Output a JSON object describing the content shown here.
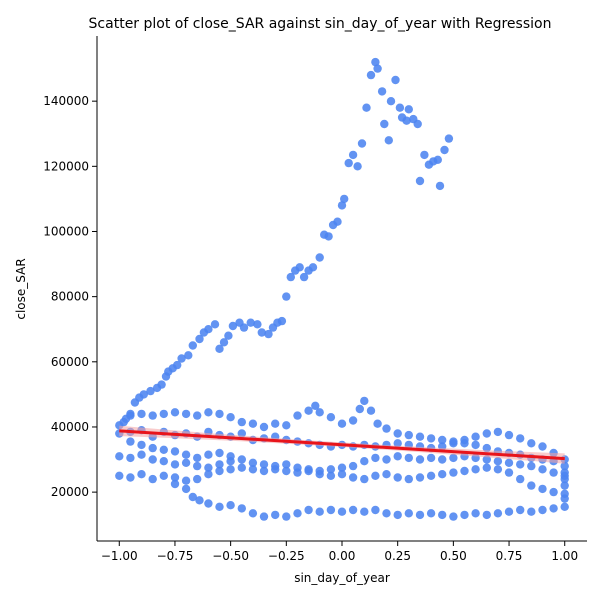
{
  "chart_data": {
    "type": "scatter",
    "title": "Scatter plot of close_SAR against sin_day_of_year with Regression",
    "xlabel": "sin_day_of_year",
    "ylabel": "close_SAR",
    "xlim": [
      -1.1,
      1.1
    ],
    "ylim": [
      5000,
      160000
    ],
    "x_ticks": [
      -1.0,
      -0.75,
      -0.5,
      -0.25,
      0.0,
      0.25,
      0.5,
      0.75,
      1.0
    ],
    "x_tick_labels": [
      "−1.00",
      "−0.75",
      "−0.50",
      "−0.25",
      "0.00",
      "0.25",
      "0.50",
      "0.75",
      "1.00"
    ],
    "y_ticks": [
      20000,
      40000,
      60000,
      80000,
      100000,
      120000,
      140000
    ],
    "y_tick_labels": [
      "20000",
      "40000",
      "60000",
      "80000",
      "100000",
      "120000",
      "140000"
    ],
    "grid": false,
    "point_color": "#4c84f0",
    "regression_color": "#e8141b",
    "regression_band_color": "#f4a3a3",
    "regression": {
      "x": [
        -1.0,
        1.0
      ],
      "y": [
        38800,
        30300
      ]
    },
    "points": [
      [
        -1.0,
        40500
      ],
      [
        -0.98,
        41500
      ],
      [
        -0.97,
        42500
      ],
      [
        -0.95,
        44000
      ],
      [
        -0.93,
        47500
      ],
      [
        -0.91,
        49000
      ],
      [
        -0.89,
        50000
      ],
      [
        -0.86,
        51000
      ],
      [
        -0.83,
        52000
      ],
      [
        -0.81,
        53000
      ],
      [
        -0.79,
        55500
      ],
      [
        -0.78,
        57000
      ],
      [
        -0.76,
        58000
      ],
      [
        -0.74,
        59000
      ],
      [
        -0.72,
        61000
      ],
      [
        -0.69,
        62000
      ],
      [
        -0.67,
        65000
      ],
      [
        -0.64,
        67000
      ],
      [
        -0.62,
        69000
      ],
      [
        -0.6,
        70000
      ],
      [
        -0.57,
        71500
      ],
      [
        -0.55,
        64000
      ],
      [
        -0.53,
        66000
      ],
      [
        -0.51,
        68000
      ],
      [
        -0.49,
        71000
      ],
      [
        -0.46,
        72000
      ],
      [
        -0.44,
        70500
      ],
      [
        -0.41,
        72000
      ],
      [
        -0.38,
        71500
      ],
      [
        -0.36,
        69000
      ],
      [
        -0.33,
        68500
      ],
      [
        -0.31,
        70500
      ],
      [
        -0.29,
        72000
      ],
      [
        -0.27,
        72500
      ],
      [
        -0.25,
        80000
      ],
      [
        -0.23,
        86000
      ],
      [
        -0.21,
        88000
      ],
      [
        -0.19,
        89000
      ],
      [
        -0.17,
        86000
      ],
      [
        -0.15,
        88000
      ],
      [
        -0.13,
        89000
      ],
      [
        -0.1,
        92000
      ],
      [
        -0.08,
        99000
      ],
      [
        -0.06,
        98500
      ],
      [
        -0.04,
        102000
      ],
      [
        -0.02,
        103000
      ],
      [
        0.0,
        108000
      ],
      [
        0.01,
        110000
      ],
      [
        0.03,
        121000
      ],
      [
        0.05,
        123500
      ],
      [
        0.07,
        120000
      ],
      [
        0.09,
        127000
      ],
      [
        0.11,
        138000
      ],
      [
        0.13,
        148000
      ],
      [
        0.15,
        152000
      ],
      [
        0.16,
        150000
      ],
      [
        0.18,
        143000
      ],
      [
        0.19,
        133000
      ],
      [
        0.21,
        128000
      ],
      [
        0.22,
        140000
      ],
      [
        0.24,
        146500
      ],
      [
        0.26,
        138000
      ],
      [
        0.27,
        135000
      ],
      [
        0.29,
        134000
      ],
      [
        0.3,
        137500
      ],
      [
        0.32,
        134500
      ],
      [
        0.34,
        133000
      ],
      [
        0.35,
        115500
      ],
      [
        0.37,
        123500
      ],
      [
        0.39,
        120500
      ],
      [
        0.41,
        121500
      ],
      [
        0.43,
        122000
      ],
      [
        0.44,
        114000
      ],
      [
        0.46,
        125000
      ],
      [
        0.48,
        128500
      ],
      [
        -1.0,
        38000
      ],
      [
        -0.95,
        38500
      ],
      [
        -0.9,
        39000
      ],
      [
        -0.85,
        37000
      ],
      [
        -0.8,
        38500
      ],
      [
        -0.75,
        37500
      ],
      [
        -0.7,
        38000
      ],
      [
        -0.65,
        37000
      ],
      [
        -0.6,
        38500
      ],
      [
        -0.55,
        37500
      ],
      [
        -0.5,
        37000
      ],
      [
        -0.45,
        38000
      ],
      [
        -0.4,
        36000
      ],
      [
        -0.35,
        36500
      ],
      [
        -0.3,
        37000
      ],
      [
        -0.25,
        36000
      ],
      [
        -0.2,
        35500
      ],
      [
        -0.15,
        35000
      ],
      [
        -0.1,
        34500
      ],
      [
        -0.05,
        34000
      ],
      [
        0.0,
        34500
      ],
      [
        0.05,
        34000
      ],
      [
        0.1,
        34500
      ],
      [
        0.15,
        34000
      ],
      [
        0.2,
        34500
      ],
      [
        0.25,
        35000
      ],
      [
        0.3,
        34500
      ],
      [
        0.35,
        34000
      ],
      [
        0.4,
        33500
      ],
      [
        0.45,
        34000
      ],
      [
        0.5,
        35000
      ],
      [
        0.55,
        36000
      ],
      [
        0.6,
        37000
      ],
      [
        0.65,
        38000
      ],
      [
        0.7,
        38500
      ],
      [
        0.75,
        37500
      ],
      [
        0.8,
        36500
      ],
      [
        0.85,
        35000
      ],
      [
        0.9,
        34000
      ],
      [
        0.95,
        32000
      ],
      [
        1.0,
        30000
      ],
      [
        -0.95,
        43500
      ],
      [
        -0.9,
        44000
      ],
      [
        -0.85,
        43500
      ],
      [
        -0.8,
        44000
      ],
      [
        -0.75,
        44500
      ],
      [
        -0.7,
        44000
      ],
      [
        -0.65,
        43500
      ],
      [
        -0.6,
        44500
      ],
      [
        -0.55,
        44000
      ],
      [
        -0.5,
        43000
      ],
      [
        -0.45,
        41500
      ],
      [
        -0.4,
        41000
      ],
      [
        -0.35,
        40000
      ],
      [
        -0.3,
        41000
      ],
      [
        -0.25,
        40500
      ],
      [
        -0.2,
        43500
      ],
      [
        -0.15,
        45000
      ],
      [
        -0.12,
        46500
      ],
      [
        -0.1,
        44500
      ],
      [
        -0.05,
        43000
      ],
      [
        0.0,
        41000
      ],
      [
        0.05,
        42000
      ],
      [
        0.08,
        45500
      ],
      [
        0.1,
        48000
      ],
      [
        0.13,
        45000
      ],
      [
        0.16,
        41000
      ],
      [
        0.2,
        39500
      ],
      [
        0.25,
        38000
      ],
      [
        0.3,
        37500
      ],
      [
        0.35,
        37000
      ],
      [
        0.4,
        36500
      ],
      [
        0.45,
        36000
      ],
      [
        0.5,
        35500
      ],
      [
        0.55,
        35000
      ],
      [
        0.6,
        34500
      ],
      [
        0.65,
        33500
      ],
      [
        0.7,
        32500
      ],
      [
        0.75,
        32000
      ],
      [
        0.8,
        31500
      ],
      [
        0.85,
        30500
      ],
      [
        0.9,
        30000
      ],
      [
        0.95,
        29500
      ],
      [
        -1.0,
        31000
      ],
      [
        -0.95,
        30500
      ],
      [
        -0.9,
        31500
      ],
      [
        -0.85,
        30000
      ],
      [
        -0.8,
        29500
      ],
      [
        -0.75,
        28500
      ],
      [
        -0.7,
        29000
      ],
      [
        -0.65,
        28000
      ],
      [
        -0.6,
        27500
      ],
      [
        -0.55,
        28500
      ],
      [
        -0.5,
        29500
      ],
      [
        -0.45,
        30000
      ],
      [
        -0.4,
        29000
      ],
      [
        -0.35,
        28500
      ],
      [
        -0.3,
        28000
      ],
      [
        -0.25,
        28500
      ],
      [
        -0.2,
        27500
      ],
      [
        -0.15,
        27000
      ],
      [
        -0.1,
        26500
      ],
      [
        -0.05,
        27000
      ],
      [
        0.0,
        27500
      ],
      [
        0.05,
        28000
      ],
      [
        0.1,
        29500
      ],
      [
        0.15,
        30500
      ],
      [
        0.2,
        30000
      ],
      [
        0.25,
        31000
      ],
      [
        0.3,
        30500
      ],
      [
        0.35,
        30000
      ],
      [
        0.4,
        30500
      ],
      [
        0.45,
        30000
      ],
      [
        0.5,
        30500
      ],
      [
        0.55,
        31000
      ],
      [
        0.6,
        30500
      ],
      [
        0.65,
        30000
      ],
      [
        0.7,
        29500
      ],
      [
        0.75,
        29000
      ],
      [
        0.8,
        28500
      ],
      [
        0.85,
        28000
      ],
      [
        0.9,
        27000
      ],
      [
        0.95,
        26000
      ],
      [
        1.0,
        25000
      ],
      [
        -1.0,
        25000
      ],
      [
        -0.95,
        24500
      ],
      [
        -0.9,
        25500
      ],
      [
        -0.85,
        24000
      ],
      [
        -0.8,
        25000
      ],
      [
        -0.75,
        24500
      ],
      [
        -0.7,
        23500
      ],
      [
        -0.65,
        24000
      ],
      [
        -0.6,
        25500
      ],
      [
        -0.55,
        26500
      ],
      [
        -0.5,
        27000
      ],
      [
        -0.45,
        27500
      ],
      [
        -0.4,
        27000
      ],
      [
        -0.35,
        26500
      ],
      [
        -0.3,
        27000
      ],
      [
        -0.25,
        26500
      ],
      [
        -0.2,
        26000
      ],
      [
        -0.15,
        26500
      ],
      [
        -0.1,
        25500
      ],
      [
        -0.05,
        25000
      ],
      [
        0.0,
        25500
      ],
      [
        0.05,
        24500
      ],
      [
        0.1,
        24000
      ],
      [
        0.15,
        25000
      ],
      [
        0.2,
        25500
      ],
      [
        0.25,
        24500
      ],
      [
        0.3,
        24000
      ],
      [
        0.35,
        24500
      ],
      [
        0.4,
        25000
      ],
      [
        0.45,
        25500
      ],
      [
        0.5,
        26000
      ],
      [
        0.55,
        26500
      ],
      [
        0.6,
        27000
      ],
      [
        0.65,
        27500
      ],
      [
        0.7,
        27000
      ],
      [
        0.75,
        26000
      ],
      [
        0.8,
        24000
      ],
      [
        0.85,
        22000
      ],
      [
        0.9,
        21000
      ],
      [
        0.95,
        20000
      ],
      [
        1.0,
        19500
      ],
      [
        -0.95,
        35500
      ],
      [
        -0.9,
        34500
      ],
      [
        -0.85,
        33500
      ],
      [
        -0.8,
        33000
      ],
      [
        -0.75,
        32500
      ],
      [
        -0.7,
        31500
      ],
      [
        -0.65,
        30500
      ],
      [
        -0.6,
        31500
      ],
      [
        -0.55,
        32000
      ],
      [
        -0.5,
        31000
      ],
      [
        -0.75,
        22500
      ],
      [
        -0.7,
        21000
      ],
      [
        -0.67,
        18500
      ],
      [
        -0.64,
        17500
      ],
      [
        -0.6,
        16500
      ],
      [
        -0.55,
        15500
      ],
      [
        -0.5,
        16000
      ],
      [
        -0.45,
        15000
      ],
      [
        -0.4,
        13500
      ],
      [
        -0.35,
        12500
      ],
      [
        -0.3,
        13000
      ],
      [
        -0.25,
        12500
      ],
      [
        -0.2,
        13500
      ],
      [
        -0.15,
        14500
      ],
      [
        -0.1,
        14000
      ],
      [
        -0.05,
        14500
      ],
      [
        0.0,
        14000
      ],
      [
        0.05,
        14500
      ],
      [
        0.1,
        14000
      ],
      [
        0.15,
        14500
      ],
      [
        0.2,
        13500
      ],
      [
        0.25,
        13000
      ],
      [
        0.3,
        13500
      ],
      [
        0.35,
        13000
      ],
      [
        0.4,
        13500
      ],
      [
        0.45,
        13000
      ],
      [
        0.5,
        12500
      ],
      [
        0.55,
        13000
      ],
      [
        0.6,
        13500
      ],
      [
        0.65,
        13000
      ],
      [
        0.7,
        13500
      ],
      [
        0.75,
        14000
      ],
      [
        0.8,
        14500
      ],
      [
        0.85,
        14000
      ],
      [
        0.9,
        14500
      ],
      [
        0.95,
        15000
      ],
      [
        1.0,
        15500
      ],
      [
        1.0,
        18000
      ],
      [
        1.0,
        22000
      ],
      [
        1.0,
        24000
      ],
      [
        1.0,
        26000
      ],
      [
        1.0,
        28000
      ]
    ]
  }
}
